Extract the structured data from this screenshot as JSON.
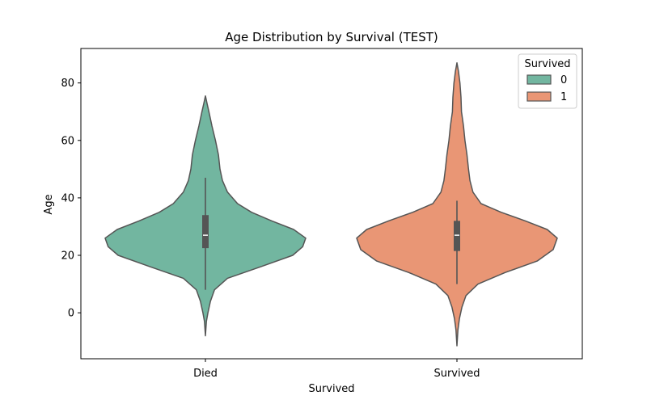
{
  "chart_data": {
    "type": "violin",
    "title": "Age Distribution by Survival (TEST)",
    "xlabel": "Survived",
    "ylabel": "Age",
    "ylim": [
      -16,
      92
    ],
    "y_ticks": [
      0,
      20,
      40,
      60,
      80
    ],
    "categories": [
      "Died",
      "Survived"
    ],
    "grid": false,
    "legend": {
      "title": "Survived",
      "placement": "top-right",
      "entries": [
        {
          "label": "0",
          "color": "#72b6a0"
        },
        {
          "label": "1",
          "color": "#e99675"
        }
      ]
    },
    "series": [
      {
        "category": "Died",
        "legend_key": "0",
        "color": "#72b6a0",
        "min_extent": -8,
        "max_extent": 75.5,
        "whisker_low": 8,
        "q1": 22.5,
        "median": 27,
        "q3": 34,
        "whisker_high": 47,
        "density_profile": [
          [
            -8,
            0.0
          ],
          [
            -3,
            0.01
          ],
          [
            0,
            0.025
          ],
          [
            4,
            0.05
          ],
          [
            8,
            0.09
          ],
          [
            12,
            0.22
          ],
          [
            16,
            0.55
          ],
          [
            20,
            0.87
          ],
          [
            23,
            0.97
          ],
          [
            26,
            1.0
          ],
          [
            29,
            0.88
          ],
          [
            32,
            0.66
          ],
          [
            35,
            0.46
          ],
          [
            38,
            0.32
          ],
          [
            42,
            0.22
          ],
          [
            46,
            0.17
          ],
          [
            50,
            0.145
          ],
          [
            55,
            0.13
          ],
          [
            60,
            0.1
          ],
          [
            65,
            0.065
          ],
          [
            70,
            0.035
          ],
          [
            73,
            0.015
          ],
          [
            75.5,
            0.0
          ]
        ]
      },
      {
        "category": "Survived",
        "legend_key": "1",
        "color": "#e99675",
        "min_extent": -11.5,
        "max_extent": 87,
        "whisker_low": 10,
        "q1": 21.5,
        "median": 27,
        "q3": 32,
        "whisker_high": 39,
        "density_profile": [
          [
            -11.5,
            0.0
          ],
          [
            -6,
            0.01
          ],
          [
            -2,
            0.025
          ],
          [
            2,
            0.05
          ],
          [
            6,
            0.09
          ],
          [
            10,
            0.21
          ],
          [
            14,
            0.48
          ],
          [
            18,
            0.8
          ],
          [
            22,
            0.96
          ],
          [
            26,
            1.0
          ],
          [
            29,
            0.9
          ],
          [
            32,
            0.68
          ],
          [
            35,
            0.44
          ],
          [
            38,
            0.24
          ],
          [
            42,
            0.16
          ],
          [
            46,
            0.13
          ],
          [
            50,
            0.115
          ],
          [
            55,
            0.1
          ],
          [
            60,
            0.08
          ],
          [
            65,
            0.065
          ],
          [
            70,
            0.045
          ],
          [
            75,
            0.04
          ],
          [
            80,
            0.03
          ],
          [
            84,
            0.015
          ],
          [
            87,
            0.0
          ]
        ]
      }
    ]
  }
}
